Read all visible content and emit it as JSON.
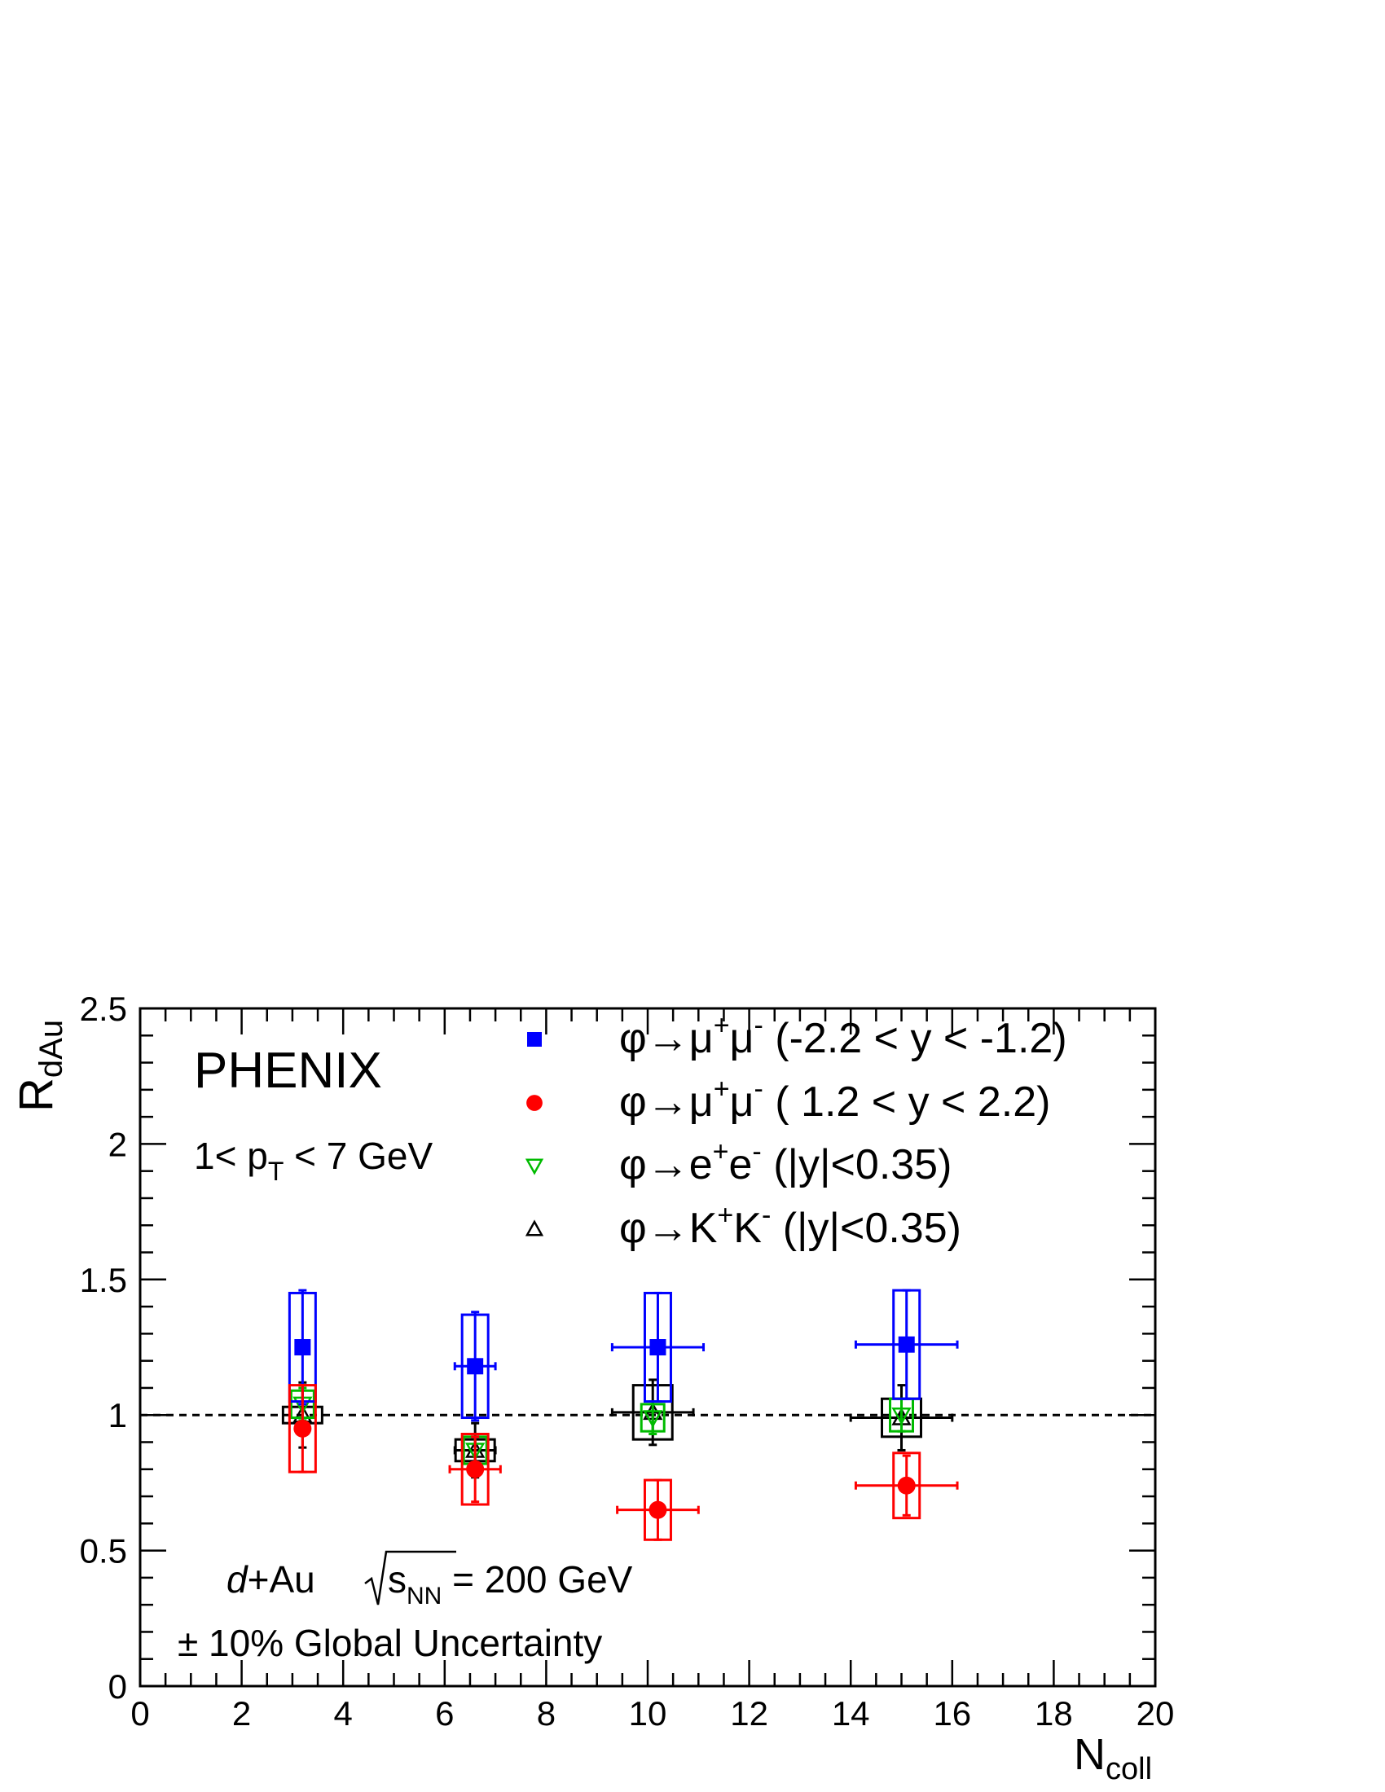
{
  "chart_data": {
    "type": "scatter",
    "title": "",
    "xlabel": "N",
    "xlabel_sub": "coll",
    "ylabel": "R",
    "ylabel_sub": "dAu",
    "xlim": [
      0,
      20
    ],
    "ylim": [
      0,
      2.5
    ],
    "xticks": [
      "0",
      "2",
      "4",
      "6",
      "8",
      "10",
      "12",
      "14",
      "16",
      "18",
      "20"
    ],
    "yticks": [
      "0",
      "0.5",
      "1",
      "1.5",
      "2",
      "2.5"
    ],
    "reference_line": 1,
    "grid": false,
    "legend_position": "top-right",
    "annotations": {
      "experiment": "PHENIX",
      "pt_pre": "1< p",
      "pt_sub": "T",
      "pt_post": " < 7 GeV",
      "system_italic": "d",
      "system_rest": "+Au",
      "energy_s": "s",
      "energy_sub": "NN",
      "energy_value": " = 200 GeV",
      "global_unc": "± 10% Global Uncertainty"
    },
    "series": [
      {
        "legend_main": "φ→μ",
        "legend_sup1": "+",
        "legend_mid": "μ",
        "legend_sup2": "-",
        "legend_rest": " (-2.2 < y < -1.2)",
        "color": "#0000ff",
        "marker": "filled-square",
        "points": [
          {
            "x": 3.2,
            "y": 1.25,
            "xerr": 0,
            "yerr": 0.21,
            "sys": 0.2
          },
          {
            "x": 6.6,
            "y": 1.18,
            "xerr": 0.4,
            "yerr": 0.2,
            "sys": 0.19
          },
          {
            "x": 10.2,
            "y": 1.25,
            "xerr": 0.9,
            "yerr": 0.2,
            "sys": 0.2
          },
          {
            "x": 15.1,
            "y": 1.26,
            "xerr": 1.0,
            "yerr": 0.2,
            "sys": 0.2
          }
        ]
      },
      {
        "legend_main": "φ→μ",
        "legend_sup1": "+",
        "legend_mid": "μ",
        "legend_sup2": "-",
        "legend_rest": " ( 1.2 < y <  2.2)",
        "color": "#ff0000",
        "marker": "filled-circle",
        "points": [
          {
            "x": 3.2,
            "y": 0.95,
            "xerr": 0,
            "yerr": 0.16,
            "sys": 0.16
          },
          {
            "x": 6.6,
            "y": 0.8,
            "xerr": 0.5,
            "yerr": 0.12,
            "sys": 0.13
          },
          {
            "x": 10.2,
            "y": 0.65,
            "xerr": 0.8,
            "yerr": 0.11,
            "sys": 0.11
          },
          {
            "x": 15.1,
            "y": 0.74,
            "xerr": 1.0,
            "yerr": 0.11,
            "sys": 0.12
          }
        ]
      },
      {
        "legend_main": "φ→e",
        "legend_sup1": "+",
        "legend_mid": "e",
        "legend_sup2": "-",
        "legend_rest": " (|y|<0.35)",
        "color": "#00bb00",
        "marker": "open-triangle-down",
        "points": [
          {
            "x": 3.2,
            "y": 1.04,
            "xerr": 0,
            "yerr": 0.06,
            "sys": 0.05
          },
          {
            "x": 6.6,
            "y": 0.87,
            "xerr": 0,
            "yerr": 0.05,
            "sys": 0.05
          },
          {
            "x": 10.1,
            "y": 0.99,
            "xerr": 0,
            "yerr": 0.06,
            "sys": 0.05
          },
          {
            "x": 15.0,
            "y": 1.0,
            "xerr": 0,
            "yerr": 0.06,
            "sys": 0.06
          }
        ]
      },
      {
        "legend_main": "φ→K",
        "legend_sup1": "+",
        "legend_mid": "K",
        "legend_sup2": "-",
        "legend_rest": " (|y|<0.35)",
        "color": "#000000",
        "marker": "open-triangle-up",
        "points": [
          {
            "x": 3.2,
            "y": 1.0,
            "xerr": 0,
            "yerr": 0.12,
            "sys": 0.03
          },
          {
            "x": 6.6,
            "y": 0.87,
            "xerr": 0.4,
            "yerr": 0.1,
            "sys": 0.04
          },
          {
            "x": 10.1,
            "y": 1.01,
            "xerr": 0.8,
            "yerr": 0.12,
            "sys": 0.1
          },
          {
            "x": 15.0,
            "y": 0.99,
            "xerr": 1.0,
            "yerr": 0.12,
            "sys": 0.07
          }
        ]
      }
    ]
  }
}
